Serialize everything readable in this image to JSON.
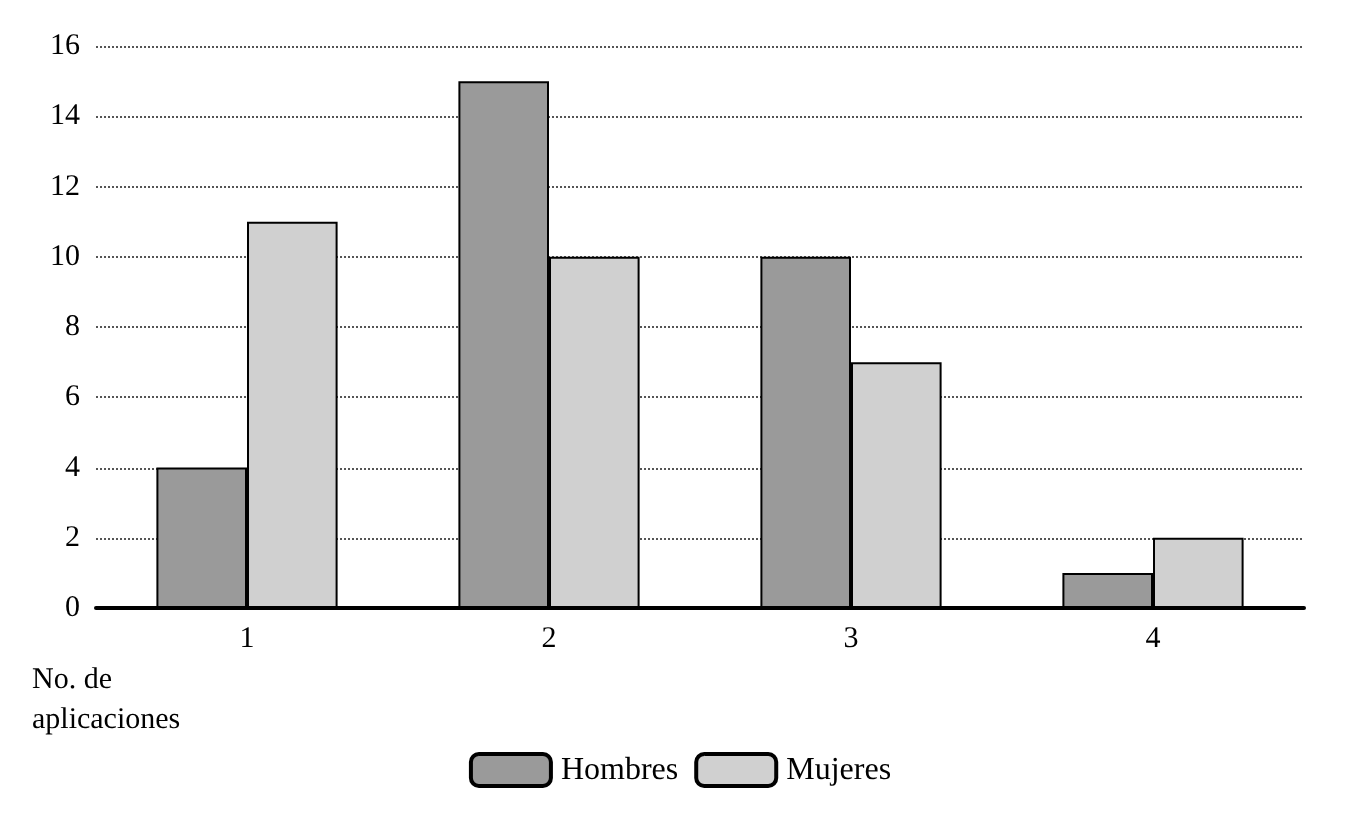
{
  "chart_data": {
    "type": "bar",
    "xlabel": "No. de aplicaciones",
    "categories": [
      "1",
      "2",
      "3",
      "4"
    ],
    "series": [
      {
        "name": "Hombres",
        "color": "#9a9a9a",
        "values": [
          4,
          15,
          10,
          1
        ]
      },
      {
        "name": "Mujeres",
        "color": "#d0d0d0",
        "values": [
          11,
          10,
          7,
          2
        ]
      }
    ],
    "ylim": [
      0,
      16
    ],
    "yticks": [
      0,
      2,
      4,
      6,
      8,
      10,
      12,
      14,
      16
    ],
    "grid": "y",
    "legend": "bottom"
  }
}
